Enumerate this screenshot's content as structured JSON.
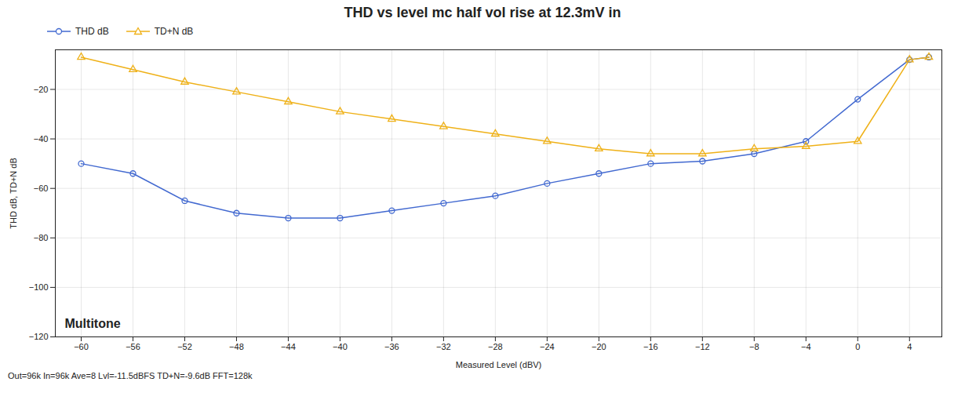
{
  "chart_data": {
    "type": "line",
    "title": "THD vs level mc half vol rise at 12.3mV in",
    "xlabel": "Measured Level (dBV)",
    "ylabel": "THD dB, TD+N dB",
    "x": [
      -60,
      -56,
      -52,
      -48,
      -44,
      -40,
      -36,
      -32,
      -28,
      -24,
      -20,
      -16,
      -12,
      -8,
      -4,
      0,
      4,
      5.5
    ],
    "series": [
      {
        "name": "THD dB",
        "marker": "circle",
        "values": [
          -50,
          -54,
          -65,
          -70,
          -72,
          -72,
          -69,
          -66,
          -63,
          -58,
          -54,
          -50,
          -49,
          -46,
          -41,
          -24,
          -8,
          -7
        ]
      },
      {
        "name": "TD+N dB",
        "marker": "triangle",
        "values": [
          -7,
          -12,
          -17,
          -21,
          -25,
          -29,
          -32,
          -35,
          -38,
          -41,
          -44,
          -46,
          -46,
          -44,
          -43,
          -41,
          -8,
          -7
        ]
      }
    ],
    "xlim": [
      -62,
      6.5
    ],
    "ylim": [
      -120,
      -4
    ],
    "xticks": [
      -60,
      -56,
      -52,
      -48,
      -44,
      -40,
      -36,
      -32,
      -28,
      -24,
      -20,
      -16,
      -12,
      -8,
      -4,
      0,
      4
    ],
    "yticks": [
      -120,
      -100,
      -80,
      -60,
      -40,
      -20
    ],
    "grid": true,
    "legend": "upper left",
    "annotations": [
      "Multitone",
      "Out=96k In=96k Ave=8 Lvl=-11.5dBFS TD+N=-9.6dB FFT=128k"
    ]
  }
}
